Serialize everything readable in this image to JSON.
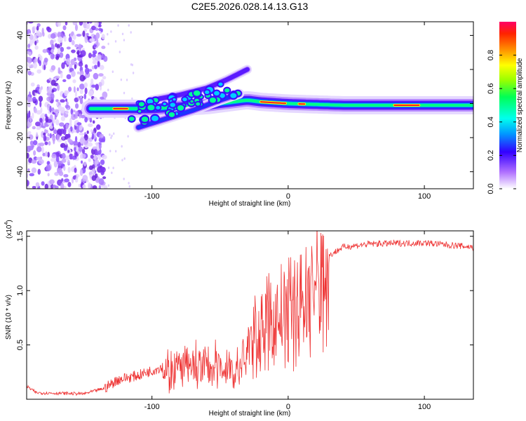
{
  "title": "C2E5.2026.028.14.13.G13",
  "chart_data": [
    {
      "type": "heatmap",
      "name": "spectrogram",
      "xlabel": "Height of straight line (km)",
      "ylabel": "Frequency (Hz)",
      "xlim": [
        -192,
        136
      ],
      "ylim": [
        -50,
        48
      ],
      "xticks": [
        -100,
        0,
        100
      ],
      "yticks": [
        -40,
        -20,
        0,
        20,
        40
      ],
      "colorbar": {
        "label": "Normalized spectral amplitude",
        "range": [
          0,
          1
        ],
        "ticks": [
          0.0,
          0.2,
          0.4,
          0.6,
          0.8
        ]
      },
      "noise_region_x": [
        -192,
        -134
      ],
      "main_track": [
        {
          "x": -145,
          "f": -3
        },
        {
          "x": -120,
          "f": -3
        },
        {
          "x": -100,
          "f": -3
        },
        {
          "x": -80,
          "f": -2
        },
        {
          "x": -60,
          "f": -1
        },
        {
          "x": -40,
          "f": 1
        },
        {
          "x": -30,
          "f": 2
        },
        {
          "x": -20,
          "f": 1
        },
        {
          "x": 0,
          "f": 0
        },
        {
          "x": 40,
          "f": -1
        },
        {
          "x": 80,
          "f": -1
        },
        {
          "x": 136,
          "f": -1
        }
      ],
      "secondary_track": [
        {
          "x": -110,
          "f": -14
        },
        {
          "x": -90,
          "f": -9
        },
        {
          "x": -70,
          "f": -4
        },
        {
          "x": -50,
          "f": 2
        },
        {
          "x": -35,
          "f": 6
        }
      ],
      "upper_branch": [
        {
          "x": -100,
          "f": 2
        },
        {
          "x": -80,
          "f": 5
        },
        {
          "x": -60,
          "f": 9
        },
        {
          "x": -45,
          "f": 14
        },
        {
          "x": -30,
          "f": 20
        }
      ]
    },
    {
      "type": "line",
      "name": "snr",
      "xlabel": "Height of straight line (km)",
      "ylabel": "SNR (10 * v/v)",
      "scale_label": "(x10",
      "scale_exp": "4",
      "scale_close": ")",
      "xlim": [
        -192,
        136
      ],
      "ylim": [
        0,
        1.55
      ],
      "xticks": [
        -100,
        0,
        100
      ],
      "yticks": [
        0.5,
        1.0,
        1.5
      ],
      "color": "#ee3333",
      "envelope": [
        {
          "x": -192,
          "y": 0.12
        },
        {
          "x": -185,
          "y": 0.06
        },
        {
          "x": -150,
          "y": 0.05
        },
        {
          "x": -135,
          "y": 0.1
        },
        {
          "x": -125,
          "y": 0.18
        },
        {
          "x": -110,
          "y": 0.22
        },
        {
          "x": -92,
          "y": 0.3
        },
        {
          "x": -70,
          "y": 0.35
        },
        {
          "x": -50,
          "y": 0.35
        },
        {
          "x": -40,
          "y": 0.32
        },
        {
          "x": -35,
          "y": 0.3
        },
        {
          "x": -30,
          "y": 0.55
        },
        {
          "x": -20,
          "y": 0.75
        },
        {
          "x": -10,
          "y": 0.85
        },
        {
          "x": 0,
          "y": 0.95
        },
        {
          "x": 10,
          "y": 1.05
        },
        {
          "x": 20,
          "y": 1.2
        },
        {
          "x": 30,
          "y": 1.32
        },
        {
          "x": 40,
          "y": 1.4
        },
        {
          "x": 60,
          "y": 1.43
        },
        {
          "x": 100,
          "y": 1.44
        },
        {
          "x": 136,
          "y": 1.4
        }
      ]
    }
  ]
}
